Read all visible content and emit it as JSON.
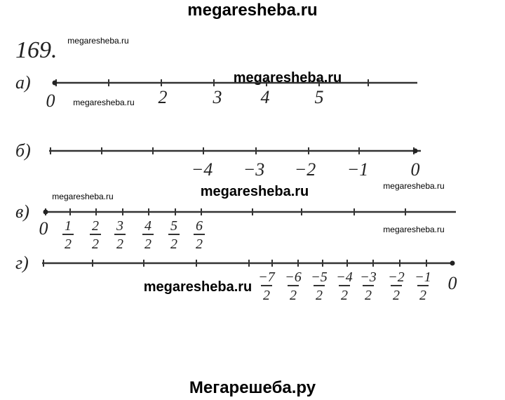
{
  "header": {
    "title": "megaresheba.ru"
  },
  "problem": "169.",
  "watermarks": [
    "megaresheba.ru",
    "megaresheba.ru",
    "megaresheba.ru",
    "megaresheba.ru",
    "megaresheba.ru",
    "megaresheba.ru",
    "megaresheba.ru",
    "megaresheba.ru"
  ],
  "parts": [
    {
      "label": "а)",
      "ticks": [
        "0",
        "2",
        "3",
        "4",
        "5"
      ]
    },
    {
      "label": "б)",
      "ticks": [
        "−4",
        "−3",
        "−2",
        "−1",
        "0"
      ]
    },
    {
      "label": "в)",
      "ticks": [
        "0",
        {
          "num": "1",
          "den": "2"
        },
        {
          "num": "2",
          "den": "2"
        },
        {
          "num": "3",
          "den": "2"
        },
        {
          "num": "4",
          "den": "2"
        },
        {
          "num": "5",
          "den": "2"
        },
        {
          "num": "6",
          "den": "2"
        }
      ]
    },
    {
      "label": "г)",
      "ticks": [
        {
          "num": "−7",
          "den": "2"
        },
        {
          "num": "−6",
          "den": "2"
        },
        {
          "num": "−5",
          "den": "2"
        },
        {
          "num": "−4",
          "den": "2"
        },
        {
          "num": "−3",
          "den": "2"
        },
        {
          "num": "−2",
          "den": "2"
        },
        {
          "num": "−1",
          "den": "2"
        },
        "0"
      ]
    }
  ],
  "footer": "Мегарешеба.ру"
}
